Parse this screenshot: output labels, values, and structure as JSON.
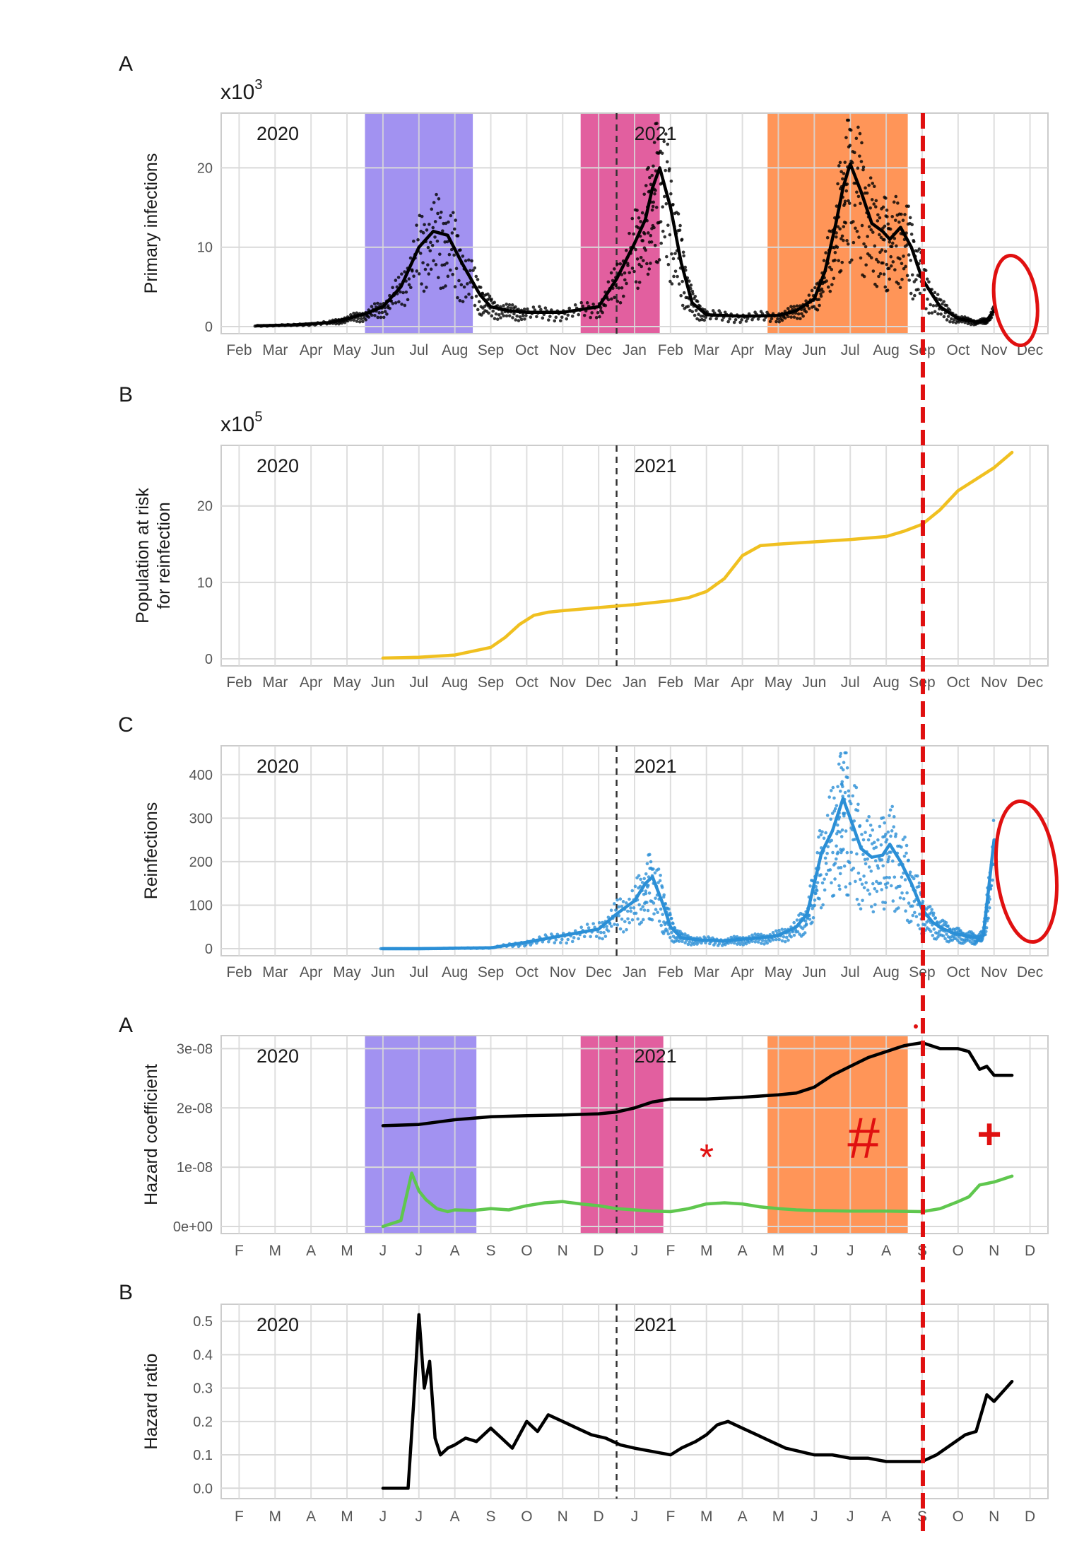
{
  "colors": {
    "grid": "#d9d9d9",
    "border": "#cccccc",
    "tick_text": "#555555",
    "label_text": "#1a1a1a",
    "wave_first": "#9d8cf0",
    "wave_second": "#e0569a",
    "wave_third": "#ff8f4f",
    "primary_line": "#000000",
    "risk_line": "#f0c020",
    "reinfection_line": "#2b8fd6",
    "hazard_primary": "#000000",
    "hazard_reinfection": "#5fc74e",
    "hazard_ratio": "#000000",
    "annotation": "#e01010"
  },
  "month_labels_full": [
    "Feb",
    "Mar",
    "Apr",
    "May",
    "Jun",
    "Jul",
    "Aug",
    "Sep",
    "Oct",
    "Nov",
    "Dec",
    "Jan",
    "Feb",
    "Mar",
    "Apr",
    "May",
    "Jun",
    "Jul",
    "Aug",
    "Sep",
    "Oct",
    "Nov",
    "Dec"
  ],
  "month_labels_short": [
    "F",
    "M",
    "A",
    "M",
    "J",
    "J",
    "A",
    "S",
    "O",
    "N",
    "D",
    "J",
    "F",
    "M",
    "A",
    "M",
    "J",
    "J",
    "A",
    "S",
    "O",
    "N",
    "D"
  ],
  "year_labels": [
    "2020",
    "2021"
  ],
  "annotations": {
    "star": "*",
    "hash": "#",
    "plus": "+"
  },
  "chart_data": [
    {
      "id": "primary",
      "panel_label": "A",
      "type": "line",
      "ylabel": "Primary infections",
      "y_multiplier_base": "x10",
      "y_multiplier_exp": "3",
      "x_axis": "months Feb 2020 – Dec 2021",
      "yticks": [
        0,
        10,
        20
      ],
      "ylim": [
        0,
        26
      ],
      "wave_bands_month_index": [
        [
          4,
          7
        ],
        [
          10,
          12.2
        ],
        [
          15.2,
          19.1
        ]
      ],
      "series": [
        {
          "x": [
            0.5,
            1.5,
            2.5,
            3.0,
            3.5,
            4.0,
            4.5,
            5.0,
            5.4,
            5.8,
            6.2,
            6.7,
            7.0,
            7.5,
            8.0,
            9.0,
            10.0,
            10.5,
            11.0,
            11.3,
            11.5,
            11.7,
            12.0,
            12.3,
            12.6,
            13.0,
            14.0,
            15.0,
            15.5,
            16.0,
            16.3,
            16.6,
            16.8,
            17.0,
            17.3,
            17.6,
            17.9,
            18.1,
            18.4,
            18.7,
            19.0,
            19.5,
            20.0,
            20.5,
            20.8,
            21.0
          ],
          "y": [
            0.1,
            0.2,
            0.5,
            1.0,
            1.6,
            2.5,
            5.0,
            10.0,
            12.0,
            11.5,
            8.0,
            4.0,
            2.5,
            2.0,
            1.8,
            1.8,
            2.5,
            6.0,
            10.5,
            13.5,
            17.5,
            20.0,
            15.0,
            8.0,
            3.0,
            1.5,
            1.3,
            1.4,
            2.0,
            3.5,
            7.0,
            13.0,
            17.5,
            20.5,
            17.0,
            13.0,
            12.0,
            11.0,
            12.5,
            10.0,
            6.0,
            2.5,
            1.0,
            0.6,
            0.8,
            2.0
          ]
        }
      ]
    },
    {
      "id": "risk",
      "panel_label": "B",
      "type": "line",
      "ylabel": "Population at risk for reinfection",
      "ylabel_lines": [
        "Population at risk",
        "for reinfection"
      ],
      "y_multiplier_base": "x10",
      "y_multiplier_exp": "5",
      "x_axis": "months Feb 2020 – Dec 2021",
      "yticks": [
        0,
        10,
        20
      ],
      "ylim": [
        0,
        27
      ],
      "series": [
        {
          "x": [
            4.0,
            5.0,
            6.0,
            7.0,
            7.4,
            7.8,
            8.2,
            8.6,
            9.0,
            10.0,
            11.0,
            12.0,
            12.5,
            13.0,
            13.5,
            14.0,
            14.5,
            15.0,
            16.0,
            17.0,
            18.0,
            18.5,
            19.0,
            19.5,
            20.0,
            20.5,
            21.0,
            21.5
          ],
          "y": [
            0.1,
            0.2,
            0.5,
            1.5,
            2.8,
            4.5,
            5.7,
            6.1,
            6.3,
            6.7,
            7.1,
            7.6,
            8.0,
            8.8,
            10.5,
            13.5,
            14.8,
            15.0,
            15.3,
            15.6,
            16.0,
            16.7,
            17.6,
            19.5,
            22.0,
            23.5,
            25.0,
            27.0
          ]
        }
      ]
    },
    {
      "id": "reinfections",
      "panel_label": "C",
      "type": "line",
      "ylabel": "Reinfections",
      "x_axis": "months Feb 2020 – Dec 2021",
      "yticks": [
        0,
        100,
        200,
        300,
        400
      ],
      "ylim": [
        0,
        450
      ],
      "series": [
        {
          "x": [
            4.0,
            5.0,
            6.0,
            7.0,
            8.0,
            9.0,
            10.0,
            10.5,
            11.0,
            11.3,
            11.5,
            11.8,
            12.0,
            12.3,
            12.8,
            13.5,
            14.0,
            14.5,
            15.0,
            15.5,
            15.8,
            16.0,
            16.2,
            16.5,
            16.7,
            16.8,
            17.0,
            17.3,
            17.6,
            17.9,
            18.1,
            18.4,
            18.7,
            19.0,
            19.3,
            19.6,
            19.9,
            20.2,
            20.5,
            20.7,
            20.8,
            21.0
          ],
          "y": [
            0,
            0,
            1,
            2,
            15,
            30,
            45,
            80,
            110,
            150,
            165,
            100,
            50,
            25,
            20,
            18,
            22,
            25,
            30,
            50,
            80,
            150,
            220,
            270,
            320,
            345,
            300,
            230,
            210,
            215,
            240,
            200,
            150,
            90,
            60,
            45,
            35,
            30,
            25,
            30,
            100,
            250
          ]
        }
      ]
    },
    {
      "id": "hazard_coefficient",
      "panel_label": "A",
      "type": "line",
      "ylabel": "Hazard coefficient",
      "x_axis": "months Feb 2020 – Dec 2021",
      "yticks": [
        "0e+00",
        "1e-08",
        "2e-08",
        "3e-08"
      ],
      "ylim": [
        0,
        3.1e-08
      ],
      "wave_bands_month_index": [
        [
          4,
          7.1
        ],
        [
          10,
          12.3
        ],
        [
          15.2,
          19.1
        ]
      ],
      "series": [
        {
          "x": [
            4.0,
            5.0,
            6.0,
            7.0,
            8.0,
            9.0,
            10.0,
            10.5,
            11.0,
            11.5,
            12.0,
            13.0,
            14.0,
            15.0,
            15.5,
            16.0,
            16.5,
            17.0,
            17.5,
            18.0,
            18.5,
            19.0,
            19.5,
            20.0,
            20.3,
            20.6,
            20.8,
            21.0,
            21.5
          ],
          "y": [
            1.7e-08,
            1.72e-08,
            1.8e-08,
            1.85e-08,
            1.87e-08,
            1.88e-08,
            1.9e-08,
            1.93e-08,
            2e-08,
            2.1e-08,
            2.15e-08,
            2.15e-08,
            2.18e-08,
            2.22e-08,
            2.25e-08,
            2.35e-08,
            2.55e-08,
            2.7e-08,
            2.85e-08,
            2.95e-08,
            3.05e-08,
            3.1e-08,
            3e-08,
            3e-08,
            2.95e-08,
            2.65e-08,
            2.7e-08,
            2.55e-08,
            2.55e-08
          ]
        },
        {
          "x": [
            4.0,
            4.5,
            4.8,
            5.0,
            5.2,
            5.5,
            5.8,
            6.0,
            6.5,
            7.0,
            7.5,
            8.0,
            8.5,
            9.0,
            9.5,
            10.0,
            10.5,
            11.0,
            11.5,
            12.0,
            12.5,
            13.0,
            13.5,
            14.0,
            14.5,
            15.0,
            15.5,
            16.0,
            17.0,
            18.0,
            19.0,
            19.5,
            20.0,
            20.3,
            20.6,
            21.0,
            21.5
          ],
          "y": [
            0.0,
            1e-09,
            9e-09,
            6e-09,
            4.5e-09,
            3e-09,
            2.5e-09,
            2.8e-09,
            2.7e-09,
            3e-09,
            2.8e-09,
            3.5e-09,
            4e-09,
            4.2e-09,
            3.8e-09,
            3.5e-09,
            3e-09,
            2.8e-09,
            2.6e-09,
            2.5e-09,
            3e-09,
            3.8e-09,
            4e-09,
            3.8e-09,
            3.3e-09,
            3e-09,
            2.8e-09,
            2.7e-09,
            2.6e-09,
            2.6e-09,
            2.5e-09,
            3e-09,
            4.2e-09,
            5e-09,
            7e-09,
            7.5e-09,
            8.5e-09
          ]
        }
      ]
    },
    {
      "id": "hazard_ratio",
      "panel_label": "B",
      "type": "line",
      "ylabel": "Hazard ratio",
      "x_axis": "months Feb 2020 – Dec 2021",
      "yticks": [
        0.0,
        0.1,
        0.2,
        0.3,
        0.4,
        0.5
      ],
      "ylim": [
        -0.01,
        0.53
      ],
      "series": [
        {
          "x": [
            4.0,
            4.7,
            4.85,
            5.0,
            5.15,
            5.3,
            5.45,
            5.6,
            5.8,
            6.0,
            6.3,
            6.6,
            7.0,
            7.3,
            7.6,
            8.0,
            8.3,
            8.6,
            9.0,
            9.4,
            9.8,
            10.2,
            10.6,
            11.0,
            11.5,
            12.0,
            12.3,
            12.7,
            13.0,
            13.3,
            13.6,
            14.0,
            14.4,
            14.8,
            15.2,
            15.6,
            16.0,
            16.5,
            17.0,
            17.5,
            18.0,
            18.5,
            19.0,
            19.4,
            19.8,
            20.2,
            20.5,
            20.8,
            21.0,
            21.5
          ],
          "y": [
            0.0,
            0.0,
            0.25,
            0.52,
            0.3,
            0.38,
            0.15,
            0.1,
            0.12,
            0.13,
            0.15,
            0.14,
            0.18,
            0.15,
            0.12,
            0.2,
            0.17,
            0.22,
            0.2,
            0.18,
            0.16,
            0.15,
            0.13,
            0.12,
            0.11,
            0.1,
            0.12,
            0.14,
            0.16,
            0.19,
            0.2,
            0.18,
            0.16,
            0.14,
            0.12,
            0.11,
            0.1,
            0.1,
            0.09,
            0.09,
            0.08,
            0.08,
            0.08,
            0.1,
            0.13,
            0.16,
            0.17,
            0.28,
            0.26,
            0.32
          ]
        }
      ]
    }
  ]
}
